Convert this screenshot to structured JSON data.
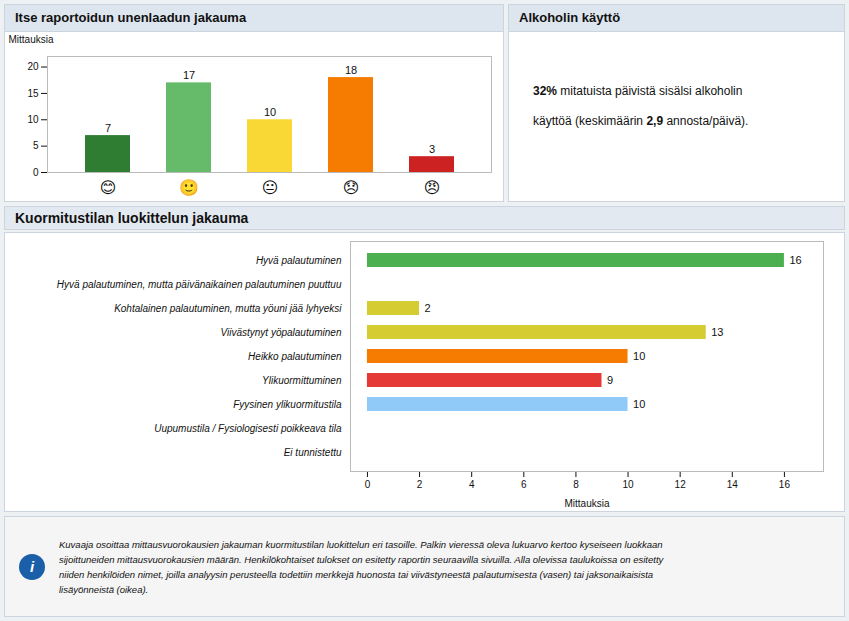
{
  "chart_data": [
    {
      "type": "bar",
      "title": "Itse raportoidun unenlaadun jakauma",
      "categories": [
        "😊",
        "🙂",
        "😐",
        "😞",
        "😠"
      ],
      "values": [
        7,
        17,
        10,
        18,
        3
      ],
      "colors": [
        "#2e7d32",
        "#66bb6a",
        "#f9d835",
        "#f57c00",
        "#cc2222"
      ],
      "ylabel": "Mittauksia",
      "ylim": [
        0,
        22
      ],
      "yticks": [
        0,
        5,
        10,
        15,
        20
      ],
      "data_labels": true
    },
    {
      "type": "text",
      "title": "Alkoholin käyttö",
      "annotations": [
        "32%",
        " mitatuista päivistä sisälsi alkoholin",
        "käyttöä (keskimäärin ",
        "2,9",
        " annosta/päivä)."
      ]
    },
    {
      "type": "bar",
      "title": "Kuormitustilan luokittelun jakauma",
      "orientation": "horizontal",
      "categories": [
        "Hyvä palautuminen",
        "Hyvä palautuminen, mutta päivänaikainen palautuminen puuttuu",
        "Kohtalainen palautuminen, mutta yöuni jää lyhyeksi",
        "Viivästynyt yöpalautuminen",
        "Heikko palautuminen",
        "Ylikuormittuminen",
        "Fyysinen ylikuormitustila",
        "Uupumustila / Fysiologisesti poikkeava tila",
        "Ei tunnistettu"
      ],
      "values": [
        16,
        0,
        2,
        13,
        10,
        9,
        10,
        0,
        0
      ],
      "value_labels": [
        "16",
        null,
        "2",
        "13",
        "10",
        "9",
        "10",
        null,
        null
      ],
      "colors": [
        "#4caf50",
        "#c8e6c9",
        "#d4cc30",
        "#d4cc30",
        "#f57c00",
        "#e53935",
        "#90caf9",
        "#bdbdbd",
        "#ffffff"
      ],
      "xlabel": "Mittauksia",
      "xlim": [
        -0.65,
        17.5
      ],
      "xticks": [
        0,
        2,
        4,
        6,
        8,
        10,
        12,
        14,
        16
      ],
      "data_labels": true
    },
    {
      "type": "text",
      "annotations": [
        "i",
        "Kuvaaja osoittaa mittausvuorokausien jakauman kuormitustilan luokittelun eri tasoille. Palkin vieressä oleva lukuarvo kertoo kyseiseen luokkaan",
        "sijoittuneiden mittausvuorokausien määrän. Henkilökohtaiset tulokset on esitetty raportin seuraavilla sivuilla. Alla olevissa taulukoissa on esitetty",
        "niiden henkilöiden nimet, joilla analyysin perusteella todettiin merkkejä huonosta tai viivästyneestä palautumisesta (vasen) tai jaksonaikaisista",
        "lisäyönneistä (oikea)."
      ]
    }
  ]
}
